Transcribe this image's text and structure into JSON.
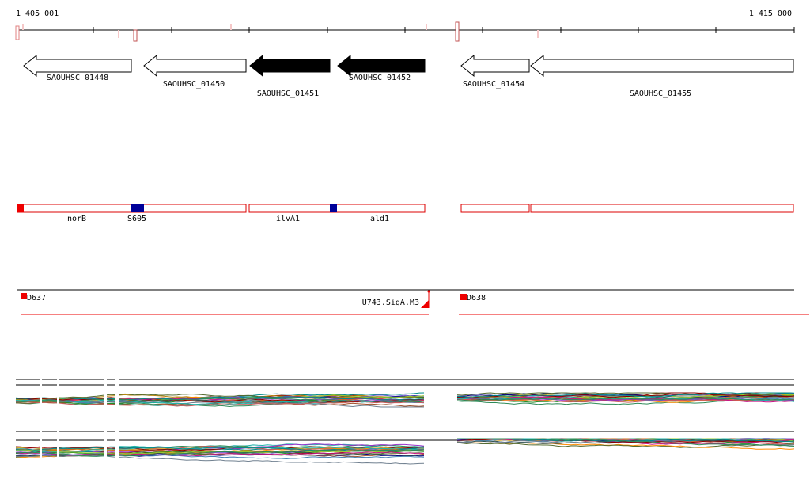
{
  "ruler": {
    "start_label": "1 405 001",
    "end_label": "1 415 000"
  },
  "genes": [
    {
      "name": "SAOUHSC_01448",
      "strand": "-",
      "filled": false
    },
    {
      "name": "SAOUHSC_01450",
      "strand": "-",
      "filled": false
    },
    {
      "name": "SAOUHSC_01451",
      "strand": "-",
      "filled": true
    },
    {
      "name": "SAOUHSC_01452",
      "strand": "-",
      "filled": true
    },
    {
      "name": "SAOUHSC_01454",
      "strand": "-",
      "filled": false
    },
    {
      "name": "SAOUHSC_01455",
      "strand": "-",
      "filled": false
    }
  ],
  "annotations": [
    {
      "label": "norB"
    },
    {
      "label": "S605"
    },
    {
      "label": "ilvA1"
    },
    {
      "label": "ald1"
    }
  ],
  "regulons": [
    {
      "label": "D637"
    },
    {
      "label": "U743.SigA.M3"
    },
    {
      "label": "D638"
    }
  ],
  "colors": {
    "gene_filled": "#000000",
    "gene_outline": "#000000",
    "annotation_border": "#dd0000",
    "marker_red": "#ee0000",
    "marker_blue": "#000099",
    "ruler": "#000000"
  }
}
